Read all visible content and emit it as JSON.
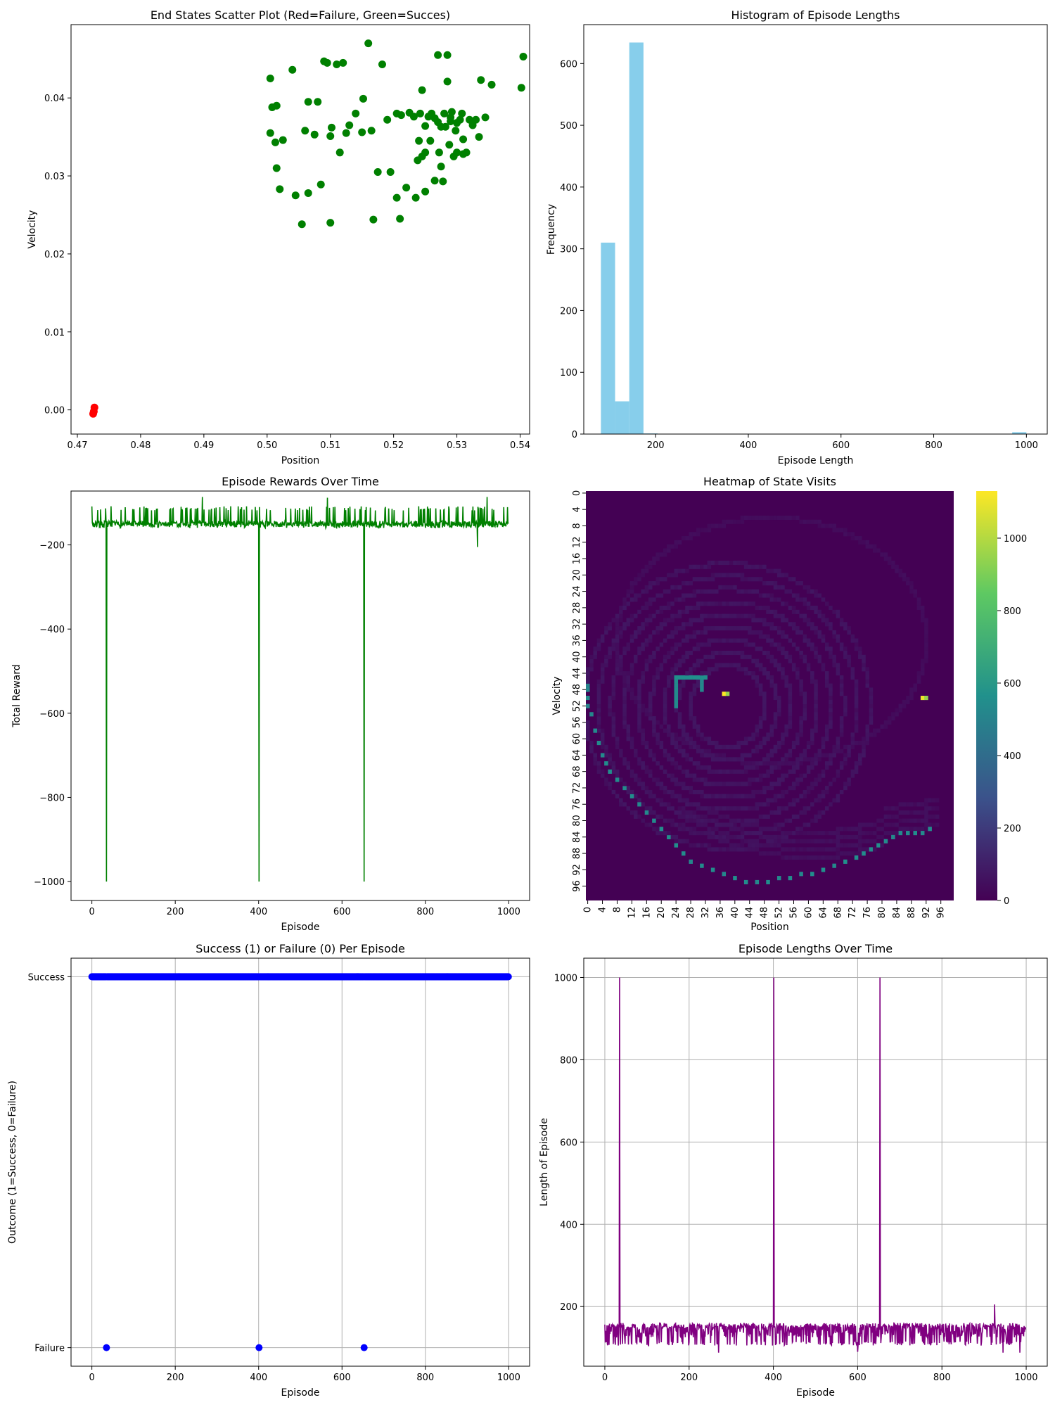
{
  "colors": {
    "success": "#008000",
    "failure": "#ff0000",
    "histogram": "#87ceeb",
    "rewards": "#008000",
    "outcome": "#0000ff",
    "lengths": "#800080",
    "grid": "#b0b0b0"
  },
  "chart_data": [
    {
      "id": "scatter",
      "type": "scatter",
      "title": "End States Scatter Plot (Red=Failure, Green=Succes)",
      "xlabel": "Position",
      "ylabel": "Velocity",
      "xlim": [
        0.469,
        0.5415
      ],
      "ylim": [
        -0.0031,
        0.0494
      ],
      "xticks": [
        0.47,
        0.48,
        0.49,
        0.5,
        0.51,
        0.52,
        0.53,
        0.54
      ],
      "xtick_labels": [
        "0.47",
        "0.48",
        "0.49",
        "0.50",
        "0.51",
        "0.52",
        "0.53",
        "0.54"
      ],
      "yticks": [
        0.0,
        0.01,
        0.02,
        0.03,
        0.04
      ],
      "ytick_labels": [
        "0.00",
        "0.01",
        "0.02",
        "0.03",
        "0.04"
      ],
      "grid": false,
      "series": [
        {
          "outcome": "failure",
          "color": "#ff0000",
          "points": [
            [
              0.4725,
              -0.0005
            ],
            [
              0.4727,
              0.0003
            ],
            [
              0.4726,
              -0.0002
            ]
          ]
        },
        {
          "outcome": "success",
          "color": "#008000",
          "points": [
            [
              0.5005,
              0.0425
            ],
            [
              0.5008,
              0.0388
            ],
            [
              0.5015,
              0.039
            ],
            [
              0.5013,
              0.0343
            ],
            [
              0.5015,
              0.031
            ],
            [
              0.502,
              0.0283
            ],
            [
              0.5025,
              0.0346
            ],
            [
              0.504,
              0.0436
            ],
            [
              0.5045,
              0.0275
            ],
            [
              0.5055,
              0.0238
            ],
            [
              0.506,
              0.0358
            ],
            [
              0.5065,
              0.0278
            ],
            [
              0.5065,
              0.0395
            ],
            [
              0.5075,
              0.0353
            ],
            [
              0.508,
              0.0395
            ],
            [
              0.5085,
              0.0289
            ],
            [
              0.509,
              0.0447
            ],
            [
              0.5095,
              0.0445
            ],
            [
              0.51,
              0.0351
            ],
            [
              0.51,
              0.024
            ],
            [
              0.5102,
              0.0362
            ],
            [
              0.511,
              0.0443
            ],
            [
              0.5115,
              0.033
            ],
            [
              0.512,
              0.0445
            ],
            [
              0.5125,
              0.0355
            ],
            [
              0.513,
              0.0365
            ],
            [
              0.514,
              0.038
            ],
            [
              0.515,
              0.0356
            ],
            [
              0.5152,
              0.0399
            ],
            [
              0.516,
              0.047
            ],
            [
              0.5165,
              0.0358
            ],
            [
              0.5168,
              0.0244
            ],
            [
              0.5175,
              0.0305
            ],
            [
              0.5182,
              0.0443
            ],
            [
              0.519,
              0.0372
            ],
            [
              0.5195,
              0.0305
            ],
            [
              0.5205,
              0.038
            ],
            [
              0.5205,
              0.0272
            ],
            [
              0.521,
              0.0245
            ],
            [
              0.5212,
              0.0378
            ],
            [
              0.522,
              0.0285
            ],
            [
              0.5225,
              0.0381
            ],
            [
              0.5235,
              0.0272
            ],
            [
              0.5238,
              0.032
            ],
            [
              0.524,
              0.0345
            ],
            [
              0.5242,
              0.038
            ],
            [
              0.5245,
              0.041
            ],
            [
              0.525,
              0.028
            ],
            [
              0.525,
              0.033
            ],
            [
              0.5255,
              0.0376
            ],
            [
              0.5258,
              0.0345
            ],
            [
              0.5265,
              0.0294
            ],
            [
              0.5265,
              0.0374
            ],
            [
              0.527,
              0.0455
            ],
            [
              0.5272,
              0.033
            ],
            [
              0.5275,
              0.0312
            ],
            [
              0.5278,
              0.0293
            ],
            [
              0.528,
              0.038
            ],
            [
              0.5282,
              0.0363
            ],
            [
              0.5285,
              0.0455
            ],
            [
              0.5288,
              0.034
            ],
            [
              0.529,
              0.0375
            ],
            [
              0.5292,
              0.0382
            ],
            [
              0.5295,
              0.0325
            ],
            [
              0.5298,
              0.0358
            ],
            [
              0.53,
              0.033
            ],
            [
              0.5305,
              0.0372
            ],
            [
              0.531,
              0.0347
            ],
            [
              0.5315,
              0.033
            ],
            [
              0.532,
              0.0372
            ],
            [
              0.5325,
              0.0365
            ],
            [
              0.533,
              0.0372
            ],
            [
              0.5335,
              0.035
            ],
            [
              0.5338,
              0.0423
            ],
            [
              0.5345,
              0.0375
            ],
            [
              0.5355,
              0.0417
            ],
            [
              0.5402,
              0.0413
            ],
            [
              0.5405,
              0.0453
            ],
            [
              0.5005,
              0.0355
            ],
            [
              0.527,
              0.0369
            ],
            [
              0.5285,
              0.0421
            ],
            [
              0.526,
              0.038
            ],
            [
              0.525,
              0.0364
            ],
            [
              0.53,
              0.0368
            ],
            [
              0.531,
              0.0328
            ],
            [
              0.5245,
              0.0325
            ],
            [
              0.5232,
              0.0376
            ],
            [
              0.5275,
              0.0363
            ],
            [
              0.529,
              0.037
            ],
            [
              0.5308,
              0.038
            ]
          ]
        }
      ]
    },
    {
      "id": "hist",
      "type": "bar",
      "title": "Histogram of Episode Lengths",
      "xlabel": "Episode Length",
      "ylabel": "Frequency",
      "xlim": [
        45,
        1045
      ],
      "ylim": [
        0,
        663
      ],
      "xticks": [
        200,
        400,
        600,
        800,
        1000
      ],
      "xtick_labels": [
        "200",
        "400",
        "600",
        "800",
        "1000"
      ],
      "yticks": [
        0,
        100,
        200,
        300,
        400,
        500,
        600
      ],
      "ytick_labels": [
        "0",
        "100",
        "200",
        "300",
        "400",
        "500",
        "600"
      ],
      "grid": false,
      "bin_edges": [
        82,
        112.6,
        143.2,
        173.8,
        204.4
      ],
      "values": [
        310,
        53,
        634,
        1
      ],
      "extra_bins": [
        {
          "start": 969.4,
          "end": 1000,
          "value": 3
        }
      ]
    },
    {
      "id": "rewards",
      "type": "line",
      "title": "Episode Rewards Over Time",
      "xlabel": "Episode",
      "ylabel": "Total Reward",
      "xlim": [
        -50,
        1050
      ],
      "ylim": [
        -1045,
        -72
      ],
      "xticks": [
        0,
        200,
        400,
        600,
        800,
        1000
      ],
      "xtick_labels": [
        "0",
        "200",
        "400",
        "600",
        "800",
        "1000"
      ],
      "yticks": [
        -1000,
        -800,
        -600,
        -400,
        -200
      ],
      "ytick_labels": [
        "−1000",
        "−800",
        "−600",
        "−400",
        "−200"
      ],
      "grid": false,
      "episodes": 1000,
      "typical_range": [
        -160,
        -108
      ],
      "spikes": [
        {
          "episode": 35,
          "value": -1000
        },
        {
          "episode": 401,
          "value": -1000
        },
        {
          "episode": 653,
          "value": -1000
        }
      ],
      "outliers": [
        {
          "episode": 265,
          "value": -86
        },
        {
          "episode": 565,
          "value": -88
        },
        {
          "episode": 925,
          "value": -205
        },
        {
          "episode": 948,
          "value": -86
        }
      ]
    },
    {
      "id": "heatmap",
      "type": "heatmap",
      "title": "Heatmap of State Visits",
      "xlabel": "Position",
      "ylabel": "Velocity",
      "grid_size": 100,
      "tick_labels": [
        "0",
        "4",
        "8",
        "12",
        "16",
        "20",
        "24",
        "28",
        "32",
        "36",
        "40",
        "44",
        "48",
        "52",
        "56",
        "60",
        "64",
        "68",
        "72",
        "76",
        "80",
        "84",
        "88",
        "92",
        "96"
      ],
      "colorbar_ticks": [
        0,
        200,
        400,
        600,
        800,
        1000
      ],
      "colorbar_labels": [
        "0",
        "200",
        "400",
        "600",
        "800",
        "1000"
      ],
      "vmax": 1130,
      "colormap": "viridis",
      "hot_cells": [
        {
          "x": 37,
          "y": 49,
          "value": 1130
        },
        {
          "x": 91,
          "y": 50,
          "value": 1100
        }
      ]
    },
    {
      "id": "outcome",
      "type": "scatter",
      "title": "Success (1) or Failure (0) Per Episode",
      "xlabel": "Episode",
      "ylabel": "Outcome (1=Success, 0=Failure)",
      "xlim": [
        -50,
        1050
      ],
      "ylim": [
        -0.05,
        1.05
      ],
      "xticks": [
        0,
        200,
        400,
        600,
        800,
        1000
      ],
      "xtick_labels": [
        "0",
        "200",
        "400",
        "600",
        "800",
        "1000"
      ],
      "yticks": [
        0,
        1
      ],
      "ytick_labels": [
        "Failure",
        "Success"
      ],
      "grid": true,
      "episodes": 1000,
      "failures": [
        35,
        401,
        653
      ],
      "success_value": 1,
      "failure_value": 0
    },
    {
      "id": "lengths",
      "type": "line",
      "title": "Episode Lengths Over Time",
      "xlabel": "Episode",
      "ylabel": "Length of Episode",
      "xlim": [
        -50,
        1050
      ],
      "ylim": [
        55,
        1047
      ],
      "xticks": [
        0,
        200,
        400,
        600,
        800,
        1000
      ],
      "xtick_labels": [
        "0",
        "200",
        "400",
        "600",
        "800",
        "1000"
      ],
      "yticks": [
        200,
        400,
        600,
        800,
        1000
      ],
      "ytick_labels": [
        "200",
        "400",
        "600",
        "800",
        "1000"
      ],
      "grid": true,
      "episodes": 1000,
      "typical_range": [
        105,
        160
      ],
      "spikes": [
        {
          "episode": 35,
          "value": 1000
        },
        {
          "episode": 401,
          "value": 1000
        },
        {
          "episode": 653,
          "value": 1000
        }
      ],
      "outliers": [
        {
          "episode": 270,
          "value": 88
        },
        {
          "episode": 600,
          "value": 90
        },
        {
          "episode": 925,
          "value": 205
        },
        {
          "episode": 945,
          "value": 88
        },
        {
          "episode": 985,
          "value": 88
        }
      ]
    }
  ]
}
